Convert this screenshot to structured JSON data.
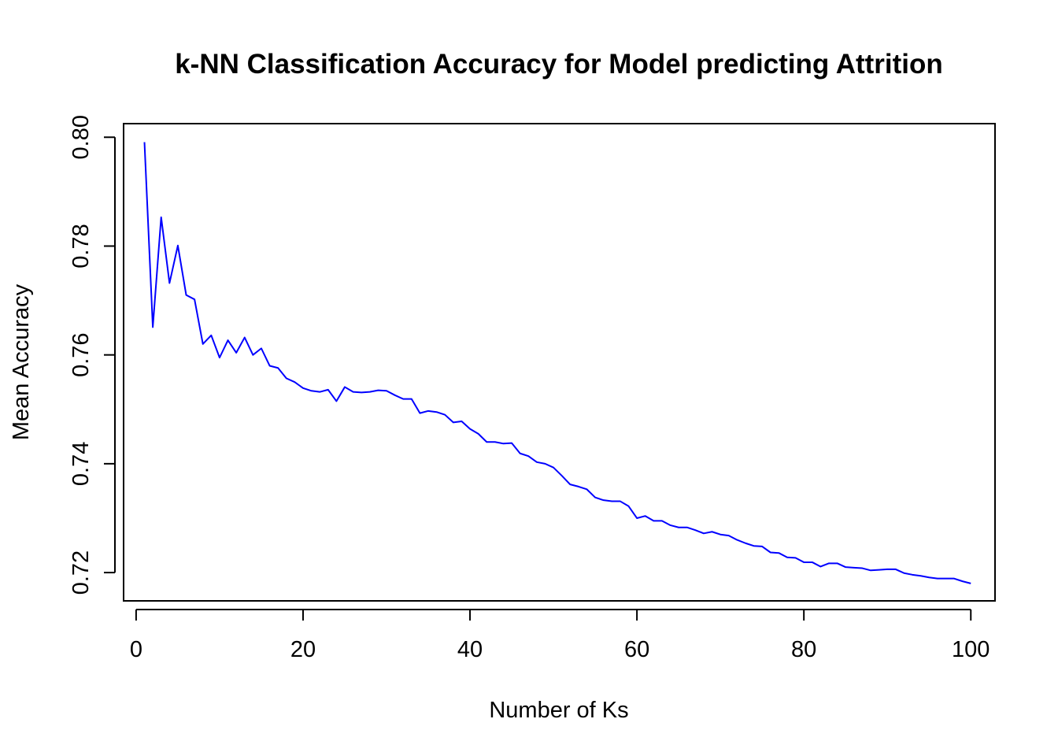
{
  "chart_data": {
    "type": "line",
    "title": "k-NN Classification Accuracy for Model predicting Attrition",
    "xlabel": "Number of Ks",
    "ylabel": "Mean Accuracy",
    "xlim": [
      -1.5,
      102.9
    ],
    "ylim": [
      0.7148,
      0.8025
    ],
    "x_ticks": [
      0,
      20,
      40,
      60,
      80,
      100
    ],
    "y_ticks": [
      0.72,
      0.74,
      0.76,
      0.78,
      0.8
    ],
    "x_tick_labels": [
      "0",
      "20",
      "40",
      "60",
      "80",
      "100"
    ],
    "y_tick_labels": [
      "0.72",
      "0.74",
      "0.76",
      "0.78",
      "0.80"
    ],
    "grid": false,
    "legend": "none",
    "series": [
      {
        "color": "#0000ff",
        "x": [
          1,
          2,
          3,
          4,
          5,
          6,
          7,
          8,
          9,
          10,
          11,
          12,
          13,
          14,
          15,
          16,
          17,
          18,
          19,
          20,
          21,
          22,
          23,
          24,
          25,
          26,
          27,
          28,
          29,
          30,
          31,
          32,
          33,
          34,
          35,
          36,
          37,
          38,
          39,
          40,
          41,
          42,
          43,
          44,
          45,
          46,
          47,
          48,
          49,
          50,
          51,
          52,
          53,
          54,
          55,
          56,
          57,
          58,
          59,
          60,
          61,
          62,
          63,
          64,
          65,
          66,
          67,
          68,
          69,
          70,
          71,
          72,
          73,
          74,
          75,
          76,
          77,
          78,
          79,
          80,
          81,
          82,
          83,
          84,
          85,
          86,
          87,
          88,
          89,
          90,
          91,
          92,
          93,
          94,
          95,
          96,
          97,
          98,
          99,
          100
        ],
        "values": [
          0.7991,
          0.7651,
          0.7853,
          0.7732,
          0.7801,
          0.771,
          0.7702,
          0.762,
          0.7636,
          0.7595,
          0.7627,
          0.7604,
          0.7632,
          0.76,
          0.7612,
          0.758,
          0.7576,
          0.7557,
          0.755,
          0.7539,
          0.7534,
          0.7532,
          0.7536,
          0.7515,
          0.7541,
          0.7532,
          0.7531,
          0.7532,
          0.7535,
          0.7534,
          0.7526,
          0.7519,
          0.7519,
          0.7493,
          0.7497,
          0.7495,
          0.749,
          0.7476,
          0.7478,
          0.7464,
          0.7455,
          0.744,
          0.744,
          0.7437,
          0.7438,
          0.7419,
          0.7414,
          0.7403,
          0.74,
          0.7393,
          0.7378,
          0.7362,
          0.7358,
          0.7353,
          0.7338,
          0.7333,
          0.7331,
          0.7331,
          0.7322,
          0.73,
          0.7304,
          0.7295,
          0.7295,
          0.7287,
          0.7283,
          0.7283,
          0.7278,
          0.7272,
          0.7275,
          0.727,
          0.7268,
          0.726,
          0.7254,
          0.7249,
          0.7248,
          0.7237,
          0.7236,
          0.7228,
          0.7227,
          0.7219,
          0.7219,
          0.7211,
          0.7217,
          0.7217,
          0.721,
          0.7209,
          0.7208,
          0.7204,
          0.7205,
          0.7206,
          0.7206,
          0.7199,
          0.7196,
          0.7194,
          0.7191,
          0.7189,
          0.7189,
          0.7189,
          0.7184,
          0.718
        ]
      }
    ]
  }
}
